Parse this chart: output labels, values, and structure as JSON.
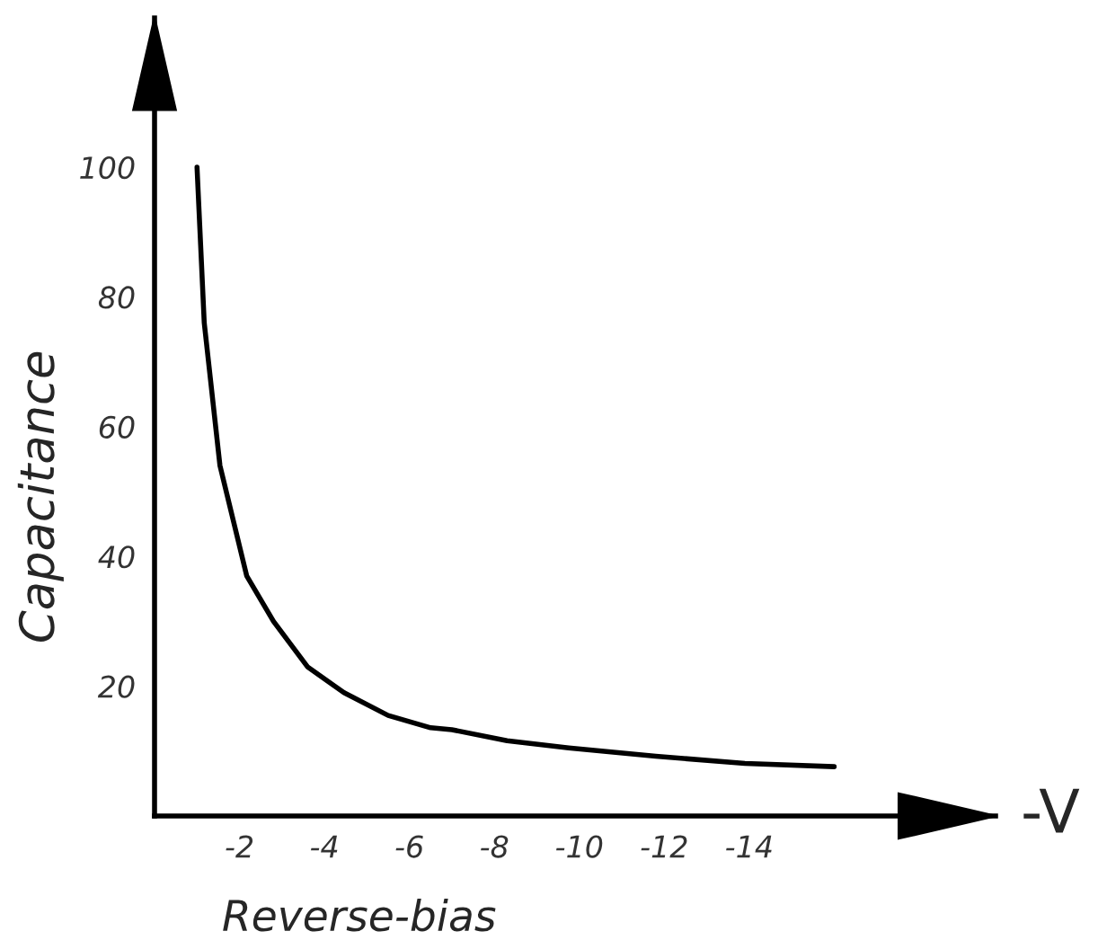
{
  "chart_data": {
    "type": "line",
    "xlabel": "Reverse-bias",
    "ylabel": "Capacitance",
    "annotations": [
      "-V"
    ],
    "x": [
      -1.0,
      -1.17,
      -1.54,
      -2.17,
      -2.8,
      -3.6,
      -4.46,
      -5.5,
      -6.5,
      -7.0,
      -8.3,
      -9.75,
      -11.8,
      -13.9,
      -16.0
    ],
    "series": [
      {
        "color": "#000000",
        "values": [
          100,
          76,
          54,
          37,
          30,
          23,
          19,
          15.5,
          13.6,
          13.3,
          11.6,
          10.5,
          9.2,
          8.1,
          7.6
        ]
      }
    ],
    "xlim": [
      0,
      -19.8
    ],
    "ylim": [
      0,
      123
    ],
    "xticks": [
      -2,
      -4,
      -6,
      -8,
      -10,
      -12,
      -14
    ],
    "yticks": [
      20,
      40,
      60,
      80,
      100
    ],
    "grid": false,
    "legend": false,
    "marker": "none",
    "line_style": "solid"
  }
}
